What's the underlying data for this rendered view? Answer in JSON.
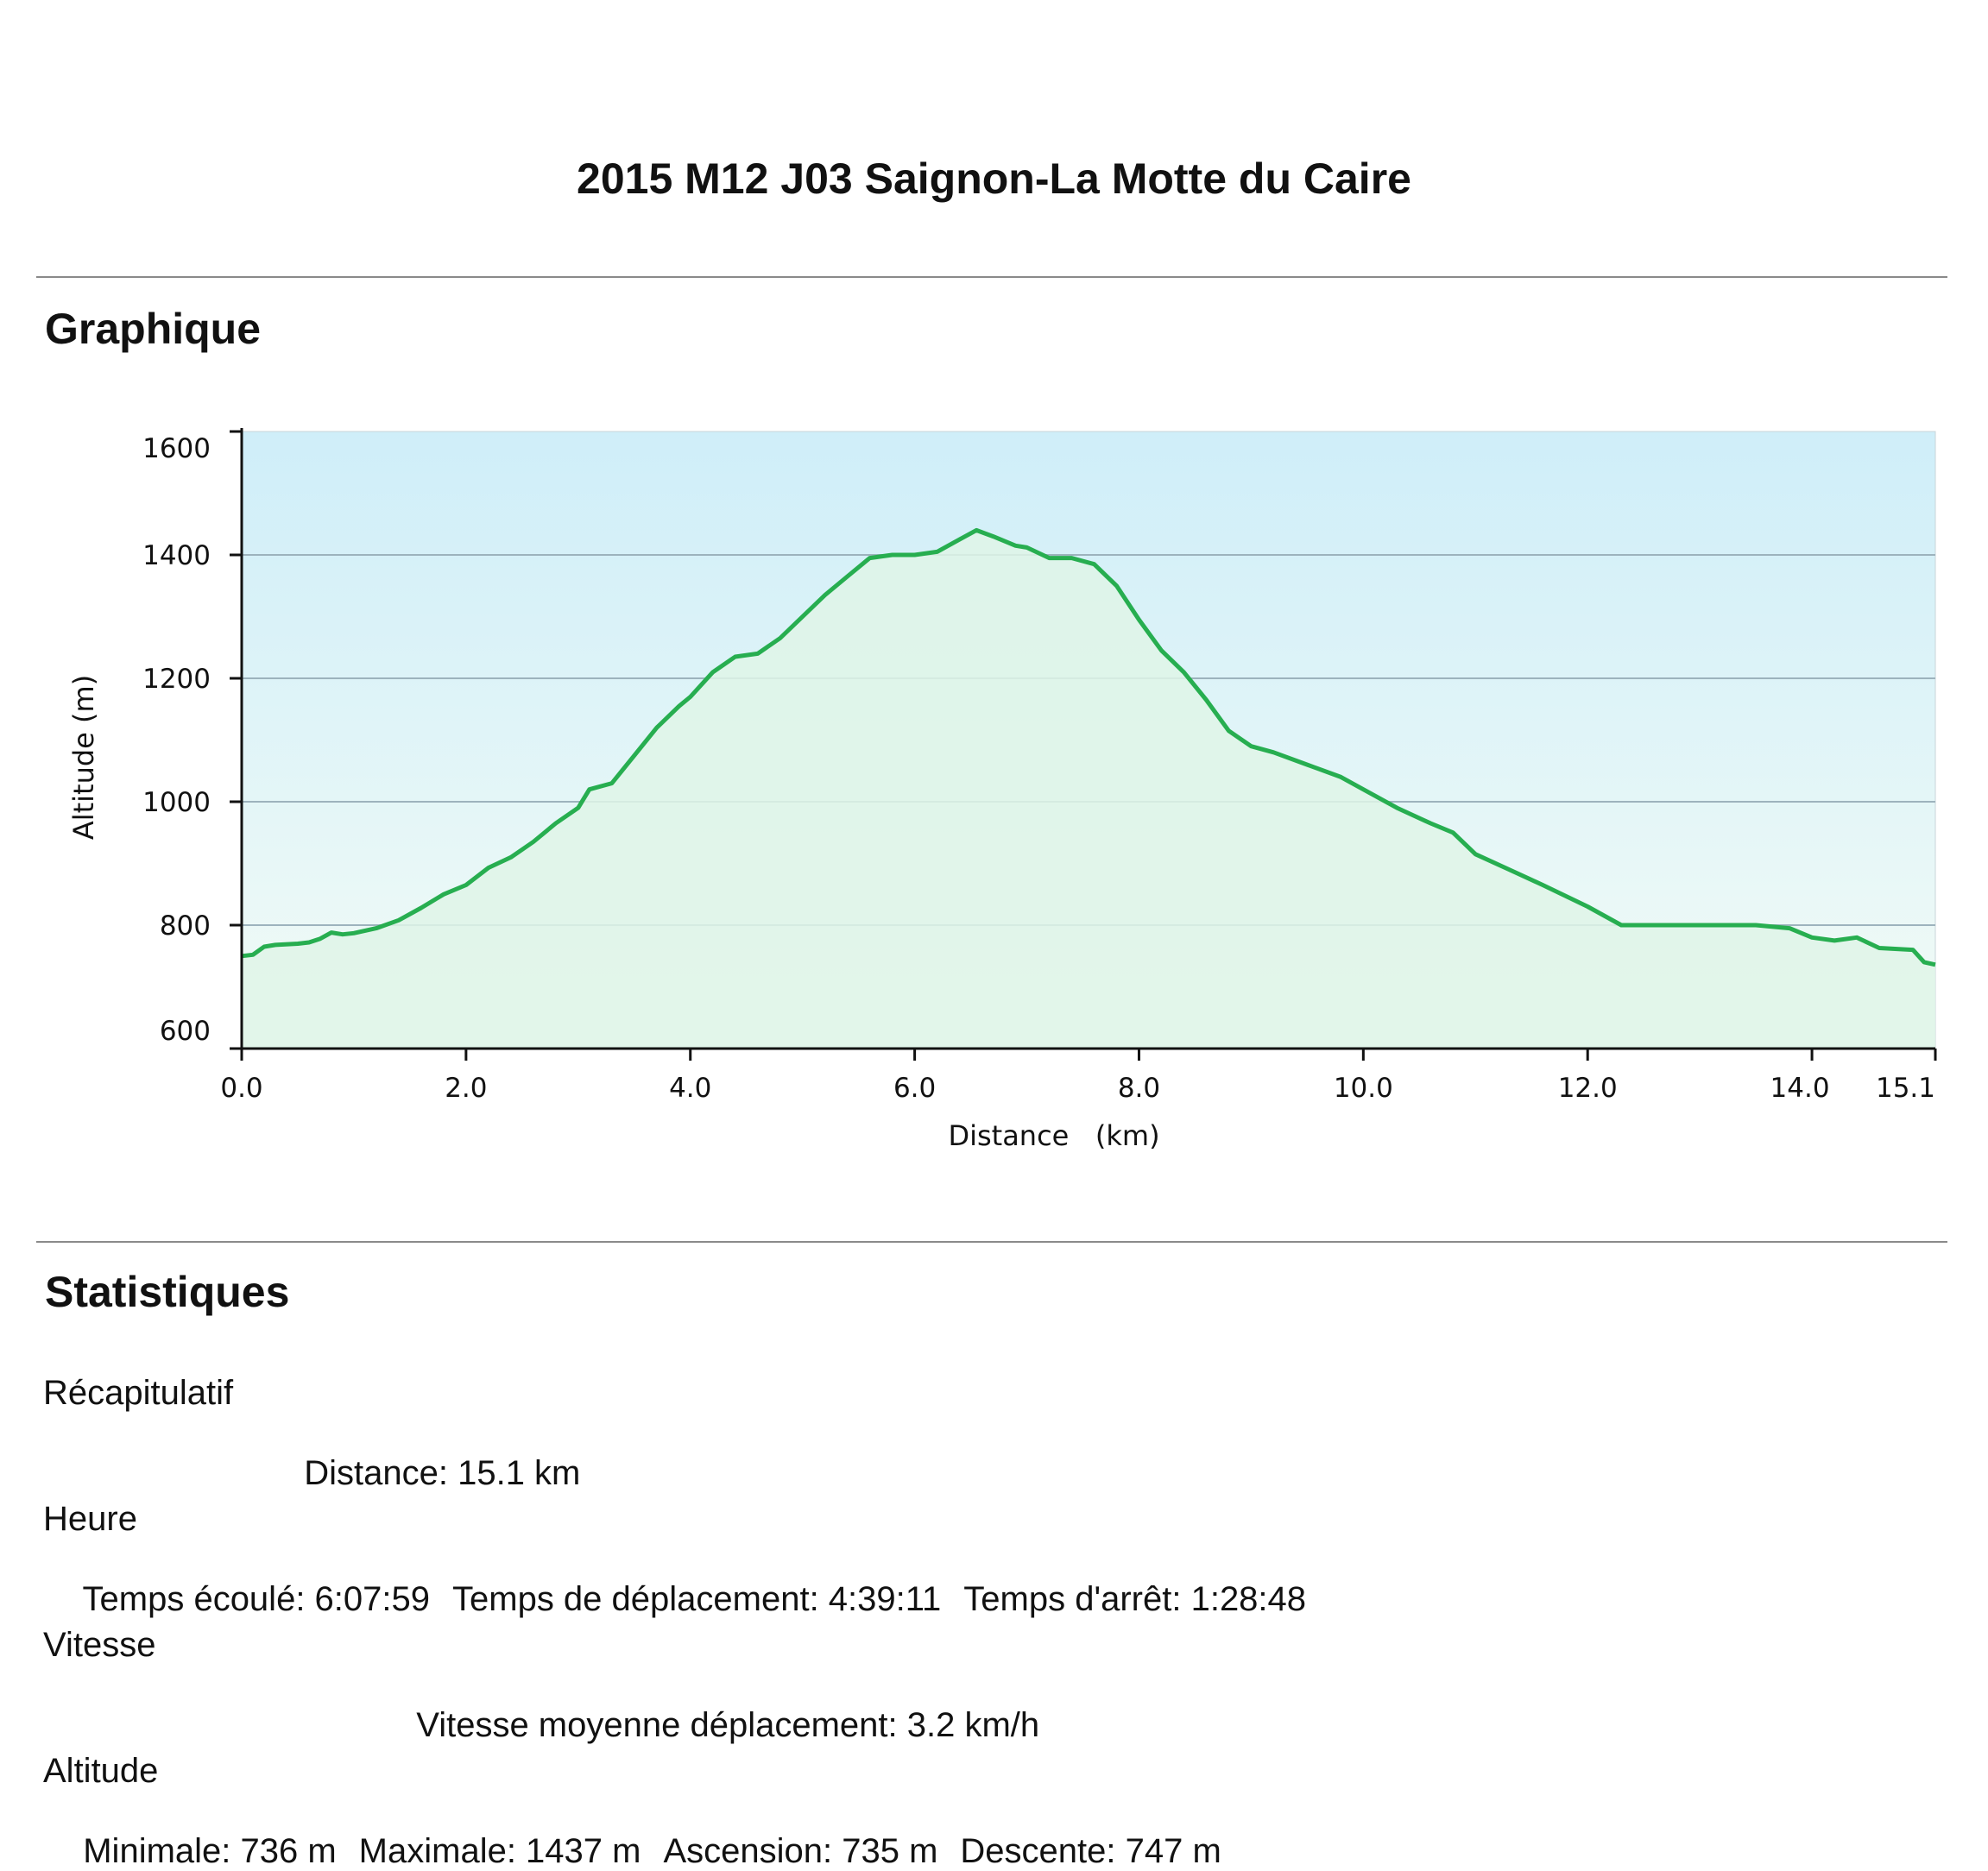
{
  "page": {
    "title": "2015 M12 J03 Saignon-La Motte du Caire",
    "section_chart": "Graphique",
    "section_stats": "Statistiques"
  },
  "stats": {
    "summary": {
      "heading": "Récapitulatif",
      "distance": "Distance: 15.1 km"
    },
    "time": {
      "heading": "Heure",
      "elapsed": "Temps écoulé: 6:07:59",
      "moving": "Temps de déplacement: 4:39:11",
      "stopped": "Temps d'arrêt: 1:28:48"
    },
    "speed": {
      "heading": "Vitesse",
      "moving_avg": "Vitesse moyenne déplacement: 3.2 km/h"
    },
    "altitude": {
      "heading": "Altitude",
      "min": "Minimale: 736 m",
      "max": "Maximale: 1437 m",
      "ascent": "Ascension: 735 m",
      "descent": "Descente: 747 m"
    }
  },
  "colors": {
    "line": "#27ae50",
    "fill_area": "#dff5e8",
    "bg_top": "#cfeef9",
    "bg_bottom": "#f2fbf6",
    "grid": "#9db3bd"
  },
  "chart_data": {
    "type": "area",
    "xlabel": "Distance   (km)",
    "ylabel": "Altitude (m)",
    "xlim": [
      0,
      15.1
    ],
    "ylim": [
      600,
      1600
    ],
    "xticks": [
      "0.0",
      "2.0",
      "4.0",
      "6.0",
      "8.0",
      "10.0",
      "12.0",
      "14.0",
      "15.1"
    ],
    "xtick_values": [
      0,
      2,
      4,
      6,
      8,
      10,
      12,
      14,
      15.1
    ],
    "yticks": [
      "600",
      "800",
      "1000",
      "1200",
      "1400",
      "1600"
    ],
    "ytick_values": [
      600,
      800,
      1000,
      1200,
      1400,
      1600
    ],
    "grid": "horizontal",
    "x": [
      0,
      0.1,
      0.2,
      0.3,
      0.5,
      0.6,
      0.7,
      0.8,
      0.9,
      1.0,
      1.2,
      1.4,
      1.6,
      1.8,
      2.0,
      2.2,
      2.4,
      2.6,
      2.8,
      3.0,
      3.1,
      3.3,
      3.5,
      3.7,
      3.9,
      4.0,
      4.2,
      4.4,
      4.6,
      4.8,
      5.0,
      5.2,
      5.4,
      5.6,
      5.8,
      6.0,
      6.2,
      6.4,
      6.55,
      6.7,
      6.9,
      7.0,
      7.2,
      7.4,
      7.6,
      7.8,
      8.0,
      8.2,
      8.4,
      8.6,
      8.8,
      9.0,
      9.2,
      9.5,
      9.8,
      10.0,
      10.3,
      10.6,
      10.8,
      11.0,
      11.3,
      11.6,
      12.0,
      12.3,
      12.5,
      13.0,
      13.5,
      13.8,
      14.0,
      14.2,
      14.4,
      14.6,
      14.9,
      15.0,
      15.1
    ],
    "y": [
      750,
      752,
      765,
      768,
      770,
      772,
      778,
      788,
      785,
      787,
      795,
      808,
      828,
      850,
      865,
      893,
      910,
      935,
      965,
      990,
      1020,
      1030,
      1075,
      1120,
      1155,
      1170,
      1210,
      1235,
      1240,
      1265,
      1300,
      1335,
      1365,
      1395,
      1400,
      1400,
      1405,
      1425,
      1440,
      1430,
      1415,
      1412,
      1395,
      1395,
      1385,
      1350,
      1295,
      1245,
      1210,
      1165,
      1115,
      1090,
      1080,
      1060,
      1040,
      1020,
      990,
      965,
      950,
      915,
      890,
      865,
      830,
      800,
      800,
      800,
      800,
      795,
      780,
      775,
      780,
      763,
      760,
      740,
      736
    ]
  }
}
